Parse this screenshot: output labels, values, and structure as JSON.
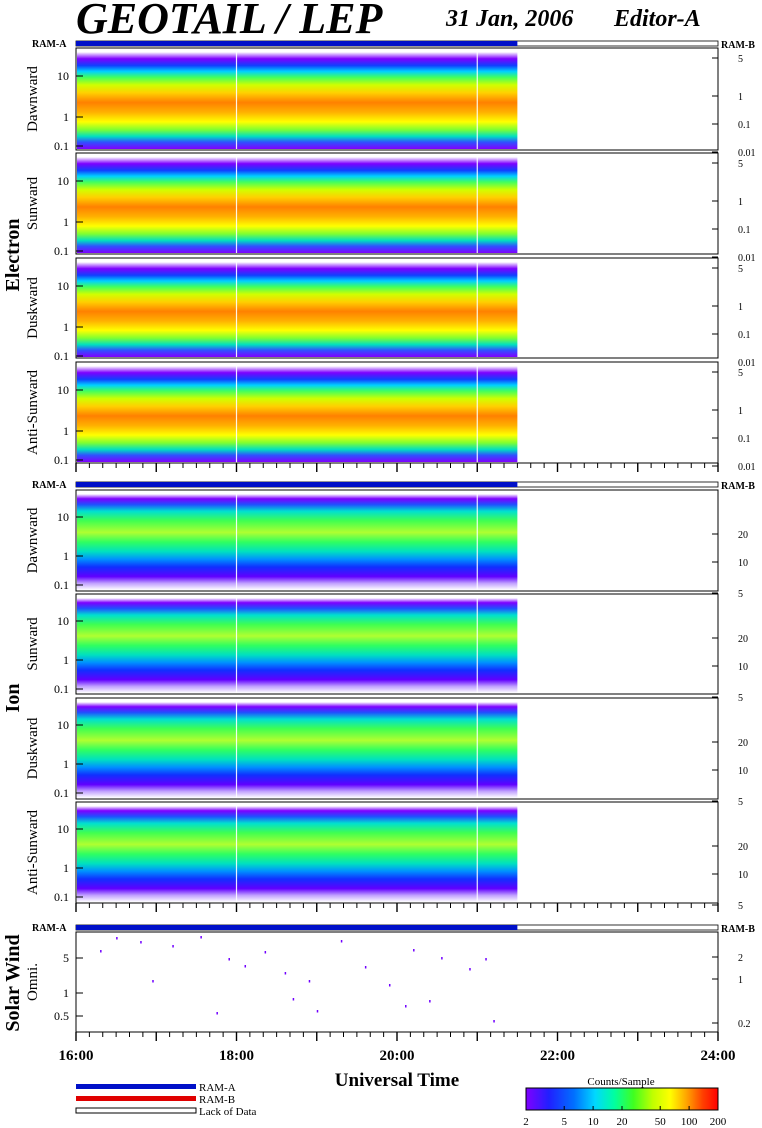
{
  "header": {
    "title": "GEOTAIL / LEP",
    "date": "31 Jan, 2006",
    "editor": "Editor-A"
  },
  "colors": {
    "ram_a": "#0010c8",
    "ram_b": "#e00000",
    "spectrogram_scale": [
      "#7d00ff",
      "#3a00ff",
      "#0040ff",
      "#00c8ff",
      "#00ffb0",
      "#30ff30",
      "#b0ff00",
      "#ffff00",
      "#ffa000",
      "#ff4000",
      "#ff0000"
    ]
  },
  "chart_data": {
    "type": "heatmap",
    "xlabel": "Universal Time",
    "x_ticks": [
      "16:00",
      "18:00",
      "20:00",
      "22:00",
      "24:00"
    ],
    "x_range_hours": [
      16,
      24
    ],
    "data_end_hour": 21.5,
    "groups": [
      {
        "label": "Electron",
        "ram_a_label": "RAM-A",
        "ram_b_label": "RAM-B",
        "panels": [
          {
            "label": "Dawnward",
            "left_ticks": [
              "10",
              "1",
              "0.1"
            ],
            "right_ticks": [
              "5",
              "1",
              "0.1",
              "0.01"
            ]
          },
          {
            "label": "Sunward",
            "left_ticks": [
              "10",
              "1",
              "0.1"
            ],
            "right_ticks": [
              "5",
              "1",
              "0.1",
              "0.01"
            ]
          },
          {
            "label": "Duskward",
            "left_ticks": [
              "10",
              "1",
              "0.1"
            ],
            "right_ticks": [
              "5",
              "1",
              "0.1",
              "0.01"
            ]
          },
          {
            "label": "Anti-Sunward",
            "left_ticks": [
              "10",
              "1",
              "0.1"
            ],
            "right_ticks": [
              "5",
              "1",
              "0.1",
              "0.01"
            ]
          }
        ]
      },
      {
        "label": "Ion",
        "ram_a_label": "RAM-A",
        "ram_b_label": "RAM-B",
        "panels": [
          {
            "label": "Dawnward",
            "left_ticks": [
              "10",
              "1",
              "0.1"
            ],
            "right_ticks": [
              "20",
              "10",
              "5"
            ]
          },
          {
            "label": "Sunward",
            "left_ticks": [
              "10",
              "1",
              "0.1"
            ],
            "right_ticks": [
              "20",
              "10",
              "5"
            ]
          },
          {
            "label": "Duskward",
            "left_ticks": [
              "10",
              "1",
              "0.1"
            ],
            "right_ticks": [
              "20",
              "10",
              "5"
            ]
          },
          {
            "label": "Anti-Sunward",
            "left_ticks": [
              "10",
              "1",
              "0.1"
            ],
            "right_ticks": [
              "20",
              "10",
              "5"
            ]
          }
        ]
      },
      {
        "label": "Solar Wind",
        "ram_a_label": "RAM-A",
        "ram_b_label": "RAM-B",
        "panels": [
          {
            "label": "Omni.",
            "left_ticks": [
              "5",
              "1",
              "0.5"
            ],
            "right_ticks": [
              "2",
              "1",
              "0.2"
            ]
          }
        ]
      }
    ],
    "legend": [
      "RAM-A",
      "RAM-B",
      "Lack of Data"
    ],
    "colorbar": {
      "title": "Counts/Sample",
      "ticks": [
        "2",
        "5",
        "10",
        "20",
        "50",
        "100",
        "200"
      ],
      "range": [
        2,
        200
      ],
      "scale": "log"
    }
  }
}
